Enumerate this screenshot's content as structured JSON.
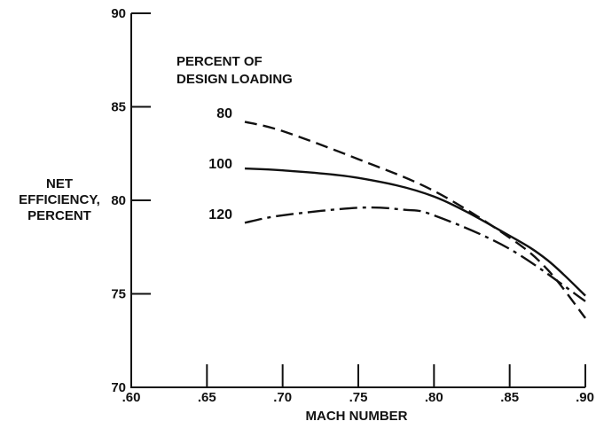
{
  "chart_data": {
    "type": "line",
    "title": "",
    "xlabel": "MACH NUMBER",
    "ylabel_lines": [
      "NET",
      "EFFICIENCY,",
      "PERCENT"
    ],
    "xlim": [
      0.6,
      0.9
    ],
    "ylim": [
      70,
      90
    ],
    "x_ticks": [
      0.6,
      0.65,
      0.7,
      0.75,
      0.8,
      0.85,
      0.9
    ],
    "x_tick_labels": [
      ".60",
      ".65",
      ".70",
      ".75",
      ".80",
      ".85",
      ".90"
    ],
    "y_ticks": [
      70,
      75,
      80,
      85,
      90
    ],
    "y_tick_labels": [
      "70",
      "75",
      "80",
      "85",
      "90"
    ],
    "grid": false,
    "legend_title_lines": [
      "PERCENT OF",
      "DESIGN LOADING"
    ],
    "series": [
      {
        "name": "80",
        "style": "dashed",
        "x": [
          0.675,
          0.7,
          0.75,
          0.8,
          0.85,
          0.875,
          0.9
        ],
        "y": [
          84.2,
          83.7,
          82.2,
          80.5,
          78.0,
          76.3,
          73.7
        ]
      },
      {
        "name": "100",
        "style": "solid",
        "x": [
          0.675,
          0.7,
          0.75,
          0.8,
          0.85,
          0.875,
          0.9
        ],
        "y": [
          81.7,
          81.6,
          81.2,
          80.2,
          78.1,
          76.8,
          74.9
        ]
      },
      {
        "name": "120",
        "style": "dash-dot",
        "x": [
          0.675,
          0.7,
          0.75,
          0.78,
          0.8,
          0.85,
          0.9
        ],
        "y": [
          78.8,
          79.2,
          79.6,
          79.5,
          79.2,
          77.4,
          74.6
        ]
      }
    ]
  }
}
